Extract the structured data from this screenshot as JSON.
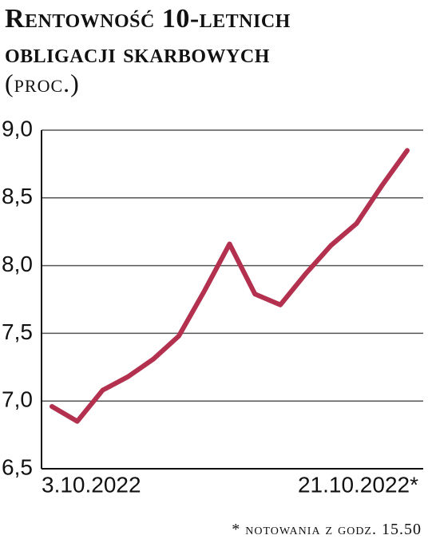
{
  "chart_data": {
    "type": "line",
    "title": "Rentowność 10-letnich obligacji skarbowych",
    "subtitle": "(proc.)",
    "footnote": "* notowania z godz. 15.50",
    "categories": [
      "3.10.2022",
      null,
      null,
      null,
      null,
      null,
      null,
      null,
      null,
      null,
      null,
      null,
      null,
      null,
      "21.10.2022*"
    ],
    "series": [
      {
        "color": "#b3304e",
        "values": [
          6.96,
          6.85,
          7.08,
          7.18,
          7.31,
          7.48,
          7.81,
          8.16,
          7.79,
          7.71,
          7.94,
          8.15,
          8.31,
          8.59,
          8.85
        ]
      }
    ],
    "ylim": [
      6.5,
      9.0
    ],
    "yticks": [
      {
        "value": 6.5,
        "label": "6,5"
      },
      {
        "value": 7.0,
        "label": "7,0"
      },
      {
        "value": 7.5,
        "label": "7,5"
      },
      {
        "value": 8.0,
        "label": "8,0"
      },
      {
        "value": 8.5,
        "label": "8,5"
      },
      {
        "value": 9.0,
        "label": "9,0"
      }
    ],
    "grid": true
  }
}
